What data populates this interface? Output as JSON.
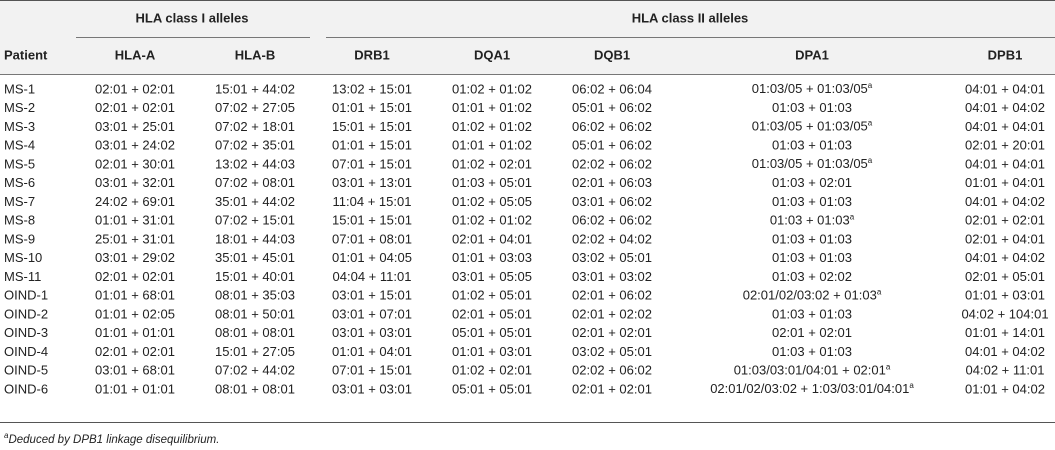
{
  "header": {
    "groups": [
      "HLA class I alleles",
      "HLA class II alleles"
    ],
    "columns": [
      "Patient",
      "HLA-A",
      "HLA-B",
      "DRB1",
      "DQA1",
      "DQB1",
      "DPA1",
      "DPB1"
    ]
  },
  "table": {
    "rows": [
      [
        "MS-1",
        "02:01 + 02:01",
        "15:01 + 44:02",
        "13:02 + 15:01",
        "01:02 + 01:02",
        "06:02 + 06:04",
        {
          "text": "01:03/05 + 01:03/05",
          "sup": "a"
        },
        "04:01 + 04:01"
      ],
      [
        "MS-2",
        "02:01 + 02:01",
        "07:02 + 27:05",
        "01:01 + 15:01",
        "01:01 + 01:02",
        "05:01 + 06:02",
        "01:03 + 01:03",
        "04:01 + 04:02"
      ],
      [
        "MS-3",
        "03:01 + 25:01",
        "07:02 + 18:01",
        "15:01 + 15:01",
        "01:02 + 01:02",
        "06:02 + 06:02",
        {
          "text": "01:03/05 + 01:03/05",
          "sup": "a"
        },
        "04:01 + 04:01"
      ],
      [
        "MS-4",
        "03:01 + 24:02",
        "07:02 + 35:01",
        "01:01 + 15:01",
        "01:01 + 01:02",
        "05:01 + 06:02",
        "01:03 + 01:03",
        "02:01 + 20:01"
      ],
      [
        "MS-5",
        "02:01 + 30:01",
        "13:02 + 44:03",
        "07:01 + 15:01",
        "01:02 + 02:01",
        "02:02 + 06:02",
        {
          "text": "01:03/05 + 01:03/05",
          "sup": "a"
        },
        "04:01 + 04:01"
      ],
      [
        "MS-6",
        "03:01 + 32:01",
        "07:02 + 08:01",
        "03:01 + 13:01",
        "01:03 + 05:01",
        "02:01 + 06:03",
        "01:03 + 02:01",
        "01:01 + 04:01"
      ],
      [
        "MS-7",
        "24:02 + 69:01",
        "35:01 + 44:02",
        "11:04 + 15:01",
        "01:02 + 05:05",
        "03:01 + 06:02",
        "01:03 + 01:03",
        "04:01 + 04:02"
      ],
      [
        "MS-8",
        "01:01 + 31:01",
        "07:02 + 15:01",
        "15:01 + 15:01",
        "01:02 + 01:02",
        "06:02 + 06:02",
        {
          "text": "01:03 + 01:03",
          "sup": "a"
        },
        "02:01 + 02:01"
      ],
      [
        "MS-9",
        "25:01 + 31:01",
        "18:01 + 44:03",
        "07:01 + 08:01",
        "02:01 + 04:01",
        "02:02 + 04:02",
        "01:03 + 01:03",
        "02:01 + 04:01"
      ],
      [
        "MS-10",
        "03:01 + 29:02",
        "35:01 + 45:01",
        "01:01 + 04:05",
        "01:01 + 03:03",
        "03:02 + 05:01",
        "01:03 + 01:03",
        "04:01 + 04:02"
      ],
      [
        "MS-11",
        "02:01 + 02:01",
        "15:01 + 40:01",
        "04:04 + 11:01",
        "03:01 + 05:05",
        "03:01 + 03:02",
        "01:03 + 02:02",
        "02:01 + 05:01"
      ],
      [
        "OIND-1",
        "01:01 + 68:01",
        "08:01 + 35:03",
        "03:01 + 15:01",
        "01:02 + 05:01",
        "02:01 + 06:02",
        {
          "text": "02:01/02/03:02 + 01:03",
          "sup": "a"
        },
        "01:01 + 03:01"
      ],
      [
        "OIND-2",
        "01:01 + 02:05",
        "08:01 + 50:01",
        "03:01 + 07:01",
        "02:01 + 05:01",
        "02:01 + 02:02",
        "01:03 + 01:03",
        "04:02 + 104:01"
      ],
      [
        "OIND-3",
        "01:01 + 01:01",
        "08:01 + 08:01",
        "03:01 + 03:01",
        "05:01 + 05:01",
        "02:01 + 02:01",
        "02:01 + 02:01",
        "01:01 + 14:01"
      ],
      [
        "OIND-4",
        "02:01 + 02:01",
        "15:01 + 27:05",
        "01:01 + 04:01",
        "01:01 + 03:01",
        "03:02 + 05:01",
        "01:03 + 01:03",
        "04:01 + 04:02"
      ],
      [
        "OIND-5",
        "03:01 + 68:01",
        "07:02 + 44:02",
        "07:01 + 15:01",
        "01:02 + 02:01",
        "02:02 + 06:02",
        {
          "text": "01:03/03:01/04:01 + 02:01",
          "sup": "a"
        },
        "04:02 + 11:01"
      ],
      [
        "OIND-6",
        "01:01 + 01:01",
        "08:01 + 08:01",
        "03:01 + 03:01",
        "05:01 + 05:01",
        "02:01 + 02:01",
        {
          "text": "02:01/02/03:02 + 1:03/03:01/04:01",
          "sup": "a"
        },
        "01:01 + 04:02"
      ]
    ]
  },
  "footnote": {
    "mark": "a",
    "text": "Deduced by DPB1 linkage disequilibrium."
  }
}
